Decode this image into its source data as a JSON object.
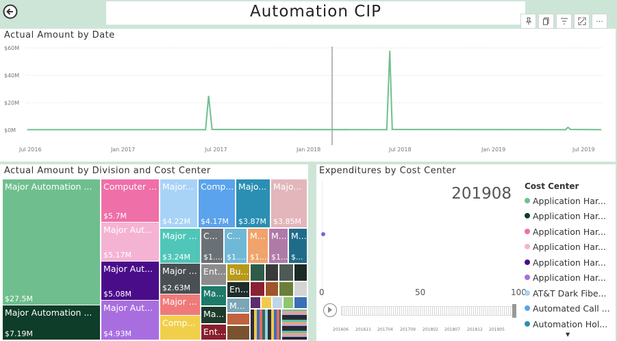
{
  "header": {
    "title": "Automation CIP"
  },
  "toolbar": {
    "buttons": [
      "pin-icon",
      "copy-icon",
      "filter-icon",
      "focus-icon",
      "more-icon"
    ]
  },
  "line_chart": {
    "title": "Actual Amount by Date",
    "y_ticks": [
      "$60M",
      "$40M",
      "$20M",
      "$0M"
    ],
    "x_ticks": [
      "Jul 2016",
      "Jan 2017",
      "Jul 2017",
      "Jan 2018",
      "Jul 2018",
      "Jan 2019",
      "Jul 2019"
    ]
  },
  "treemap": {
    "title": "Actual Amount by Division and Cost Center",
    "tiles": [
      {
        "label": "Major Automation ...",
        "value": "$27.5M"
      },
      {
        "label": "Major Automation ...",
        "value": "$7.19M"
      },
      {
        "label": "Computer ...",
        "value": "$5.7M"
      },
      {
        "label": "Major Aut...",
        "value": "$5.17M"
      },
      {
        "label": "Major Aut...",
        "value": "$5.08M"
      },
      {
        "label": "Major Aut...",
        "value": "$4.93M"
      },
      {
        "label": "Major...",
        "value": "$4.22M"
      },
      {
        "label": "Comp...",
        "value": "$4.17M"
      },
      {
        "label": "Majo...",
        "value": "$3.87M"
      },
      {
        "label": "Majo...",
        "value": "$3.85M"
      },
      {
        "label": "Major ...",
        "value": "$3.24M"
      },
      {
        "label": "Major ...",
        "value": "$2.63M"
      },
      {
        "label": "Major ...",
        "value": ""
      },
      {
        "label": "Comp...",
        "value": ""
      },
      {
        "label": "C...",
        "value": "$1...."
      },
      {
        "label": "C...",
        "value": "$1...."
      },
      {
        "label": "M...",
        "value": "$1...."
      },
      {
        "label": "M...",
        "value": "$1...."
      },
      {
        "label": "M...",
        "value": "$..."
      },
      {
        "label": "Ent...",
        "value": ""
      },
      {
        "label": "Ma...",
        "value": ""
      },
      {
        "label": "Ma...",
        "value": ""
      },
      {
        "label": "Ent...",
        "value": ""
      },
      {
        "label": "Bu...",
        "value": ""
      },
      {
        "label": "En...",
        "value": ""
      },
      {
        "label": "M...",
        "value": ""
      }
    ]
  },
  "scatter": {
    "title": "Expenditures by Cost Center",
    "play_value": "201908",
    "x_ticks": [
      "0",
      "50",
      "100"
    ],
    "timeline_ticks": [
      "201606",
      "201611",
      "201704",
      "201709",
      "201802",
      "201807",
      "201812",
      "201905"
    ],
    "legend_title": "Cost Center",
    "legend": [
      {
        "label": "Application Har...",
        "color": "#6fbf8e"
      },
      {
        "label": "Application Har...",
        "color": "#0e3d29"
      },
      {
        "label": "Application Har...",
        "color": "#ef6fa8"
      },
      {
        "label": "Application Har...",
        "color": "#f5b3d3"
      },
      {
        "label": "Application Har...",
        "color": "#4a0d8a"
      },
      {
        "label": "Application Har...",
        "color": "#a86ee0"
      },
      {
        "label": "AT&T Dark Fibe...",
        "color": "#a8d3f7"
      },
      {
        "label": "Automated Call ...",
        "color": "#5ba3ec"
      },
      {
        "label": "Automation Hol...",
        "color": "#2a8fb3"
      }
    ]
  },
  "colors": {
    "accent_line": "#6fbf8e"
  },
  "chart_data": [
    {
      "type": "line",
      "title": "Actual Amount by Date",
      "series": [
        {
          "values": [
            {
              "x": "2016-07-01",
              "y": 0.3
            },
            {
              "x": "2017-06-25",
              "y": 0.3
            },
            {
              "x": "2017-07-01",
              "y": 25.0
            },
            {
              "x": "2017-07-08",
              "y": 0.5
            },
            {
              "x": "2018-06-25",
              "y": 0.3
            },
            {
              "x": "2018-07-01",
              "y": 58.0
            },
            {
              "x": "2018-07-06",
              "y": 0.5
            },
            {
              "x": "2019-06-20",
              "y": 0.3
            },
            {
              "x": "2019-06-25",
              "y": 2.0
            },
            {
              "x": "2019-06-30",
              "y": 0.5
            },
            {
              "x": "2019-08-31",
              "y": 0.3
            }
          ]
        }
      ],
      "ylim": [
        0,
        60
      ],
      "x_ticks": [
        "Jul 2016",
        "Jan 2017",
        "Jul 2017",
        "Jan 2018",
        "Jul 2018",
        "Jan 2019",
        "Jul 2019"
      ]
    },
    {
      "type": "scatter",
      "title": "Expenditures by Cost Center",
      "series": [
        {
          "values": [
            {
              "x": 0,
              "y": 0
            }
          ]
        }
      ],
      "xlim": [
        0,
        100
      ]
    }
  ]
}
